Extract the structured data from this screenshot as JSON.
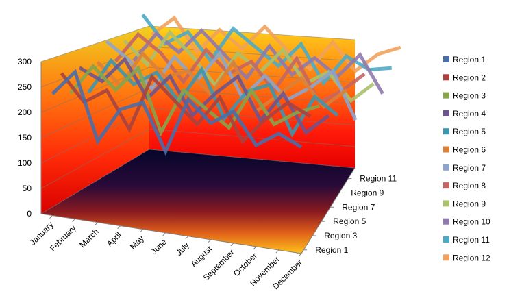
{
  "chart_data": {
    "type": "line",
    "subtype": "3d-line",
    "title": "",
    "xlabel": "",
    "ylabel": "",
    "ylim": [
      0,
      300
    ],
    "yticks": [
      0,
      50,
      100,
      150,
      200,
      250,
      300
    ],
    "grid": true,
    "legend_position": "right",
    "categories": [
      "January",
      "February",
      "March",
      "April",
      "May",
      "June",
      "July",
      "August",
      "September",
      "October",
      "November",
      "December"
    ],
    "depth_tick_labels": [
      "Region 1",
      "Region 3",
      "Region 5",
      "Region 7",
      "Region 9",
      "Region 11"
    ],
    "series": [
      {
        "name": "Region 1",
        "color": "#4a6ea8",
        "values": [
          240,
          290,
          160,
          230,
          250,
          160,
          270,
          230,
          260,
          200,
          230,
          210
        ]
      },
      {
        "name": "Region 2",
        "color": "#a8423f",
        "values": [
          270,
          220,
          250,
          180,
          290,
          250,
          210,
          270,
          190,
          240,
          280,
          260
        ]
      },
      {
        "name": "Region 3",
        "color": "#86a44a",
        "values": [
          220,
          280,
          240,
          290,
          170,
          260,
          230,
          200,
          280,
          220,
          250,
          270
        ]
      },
      {
        "name": "Region 4",
        "color": "#6e548d",
        "values": [
          260,
          240,
          290,
          220,
          270,
          200,
          250,
          290,
          210,
          270,
          200,
          240
        ]
      },
      {
        "name": "Region 5",
        "color": "#3d96ae",
        "values": [
          200,
          270,
          230,
          260,
          210,
          280,
          190,
          250,
          270,
          180,
          260,
          230
        ]
      },
      {
        "name": "Region 6",
        "color": "#da8137",
        "values": [
          250,
          210,
          280,
          240,
          260,
          220,
          290,
          200,
          240,
          280,
          230,
          270
        ]
      },
      {
        "name": "Region 7",
        "color": "#8ea5cb",
        "values": [
          280,
          250,
          200,
          270,
          230,
          290,
          210,
          260,
          220,
          250,
          290,
          200
        ]
      },
      {
        "name": "Region 8",
        "color": "#c46663",
        "values": [
          230,
          290,
          260,
          210,
          280,
          240,
          270,
          220,
          290,
          210,
          240,
          280
        ]
      },
      {
        "name": "Region 9",
        "color": "#aac16d",
        "values": [
          260,
          220,
          290,
          250,
          200,
          270,
          240,
          290,
          230,
          260,
          210,
          250
        ]
      },
      {
        "name": "Region 10",
        "color": "#9079ac",
        "values": [
          210,
          270,
          240,
          290,
          250,
          210,
          280,
          230,
          270,
          240,
          290,
          220
        ]
      },
      {
        "name": "Region 11",
        "color": "#4dabc5",
        "values": [
          290,
          240,
          270,
          220,
          290,
          260,
          230,
          280,
          210,
          270,
          250,
          260
        ]
      },
      {
        "name": "Region 12",
        "color": "#f1a25c",
        "values": [
          240,
          280,
          220,
          270,
          240,
          290,
          250,
          220,
          280,
          230,
          270,
          290
        ]
      }
    ]
  }
}
